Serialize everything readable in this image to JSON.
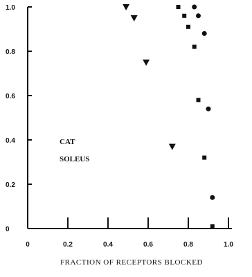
{
  "chart_data": {
    "type": "scatter",
    "title": "",
    "xlabel": "FRACTION OF RECEPTORS BLOCKED",
    "ylabel": "",
    "xlim": [
      0,
      1.0
    ],
    "ylim": [
      0,
      1.0
    ],
    "x_ticks": [
      "0",
      "0.2",
      "0.4",
      "0.6",
      "0.8",
      "1.0"
    ],
    "y_ticks": [
      "0",
      "0.2",
      "0.4",
      "0.6",
      "0.8",
      "1.0"
    ],
    "grid": false,
    "annotations": [
      "CAT",
      "SOLEUS"
    ],
    "series": [
      {
        "marker": "triangle-down",
        "points": [
          [
            0.49,
            1.0
          ],
          [
            0.53,
            0.95
          ],
          [
            0.59,
            0.75
          ],
          [
            0.72,
            0.37
          ]
        ]
      },
      {
        "marker": "square",
        "points": [
          [
            0.75,
            1.0
          ],
          [
            0.78,
            0.96
          ],
          [
            0.8,
            0.91
          ],
          [
            0.83,
            0.82
          ],
          [
            0.85,
            0.58
          ],
          [
            0.88,
            0.32
          ],
          [
            0.92,
            0.01
          ]
        ]
      },
      {
        "marker": "circle",
        "points": [
          [
            0.83,
            1.0
          ],
          [
            0.85,
            0.96
          ],
          [
            0.88,
            0.88
          ],
          [
            0.9,
            0.54
          ],
          [
            0.92,
            0.14
          ]
        ]
      }
    ]
  }
}
